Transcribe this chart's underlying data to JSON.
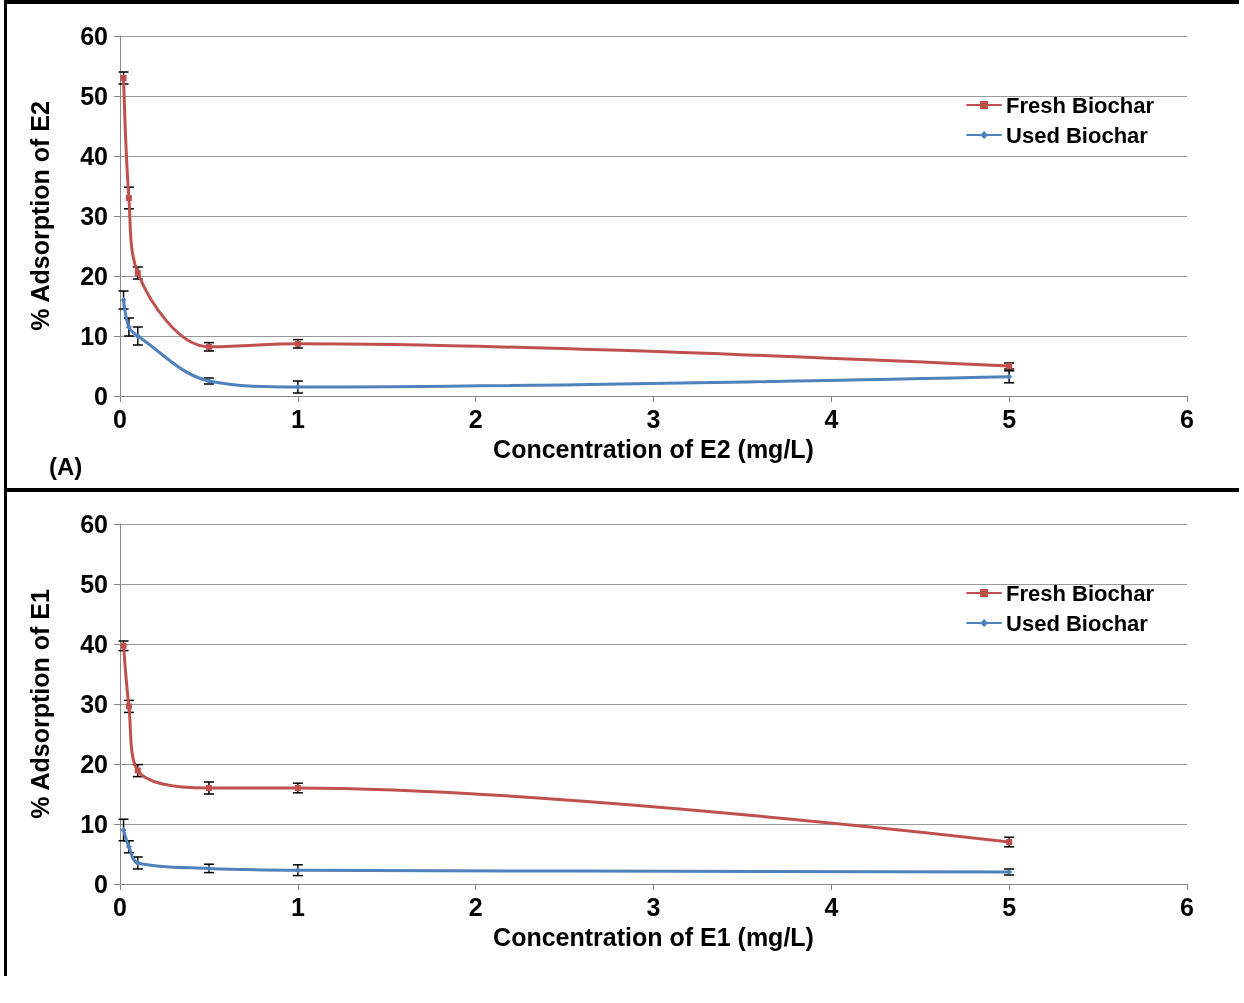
{
  "chart_data": [
    {
      "type": "line",
      "xlabel": "Concentration of E2 (mg/L)",
      "ylabel": "% Adsorption of E2",
      "annotations": [
        "(A)"
      ],
      "x": [
        0.02,
        0.05,
        0.1,
        0.5,
        1,
        5
      ],
      "xlim": [
        0,
        6
      ],
      "xticks": [
        0,
        1,
        2,
        3,
        4,
        5,
        6
      ],
      "ylim": [
        0,
        60
      ],
      "yticks": [
        0,
        10,
        20,
        30,
        40,
        50,
        60
      ],
      "grid": "y",
      "legend": "top right",
      "series": [
        {
          "name": "Fresh Biochar",
          "color": "#c0504d",
          "marker": "square",
          "values": [
            53,
            33,
            20.5,
            8.2,
            8.7,
            5
          ],
          "errors": [
            1,
            1.8,
            1,
            0.7,
            0.7,
            0.5
          ]
        },
        {
          "name": "Used Biochar",
          "color": "#4f81bd",
          "marker": "diamond",
          "values": [
            16,
            11.5,
            10,
            2.5,
            1.5,
            3.2
          ],
          "errors": [
            1.5,
            1.5,
            1.5,
            0.5,
            1,
            1
          ]
        }
      ]
    },
    {
      "type": "line",
      "xlabel": "Concentration of E1 (mg/L)",
      "ylabel": "% Adsorption of E1",
      "x": [
        0.02,
        0.05,
        0.1,
        0.5,
        1,
        5
      ],
      "xlim": [
        0,
        6
      ],
      "xticks": [
        0,
        1,
        2,
        3,
        4,
        5,
        6
      ],
      "ylim": [
        0,
        60
      ],
      "yticks": [
        0,
        10,
        20,
        30,
        40,
        50,
        60
      ],
      "grid": "y",
      "legend": "top right",
      "series": [
        {
          "name": "Fresh Biochar",
          "color": "#c0504d",
          "marker": "square",
          "values": [
            39.7,
            29.6,
            18.9,
            16,
            16,
            7
          ],
          "errors": [
            0.8,
            1,
            1,
            1,
            0.8,
            0.8
          ]
        },
        {
          "name": "Used Biochar",
          "color": "#4f81bd",
          "marker": "diamond",
          "values": [
            9,
            6.2,
            3.5,
            2.6,
            2.3,
            2
          ],
          "errors": [
            1.8,
            1,
            1,
            0.7,
            0.9,
            0.5
          ]
        }
      ]
    }
  ]
}
